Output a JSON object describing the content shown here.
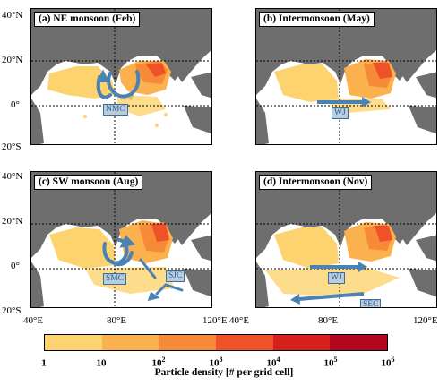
{
  "panels": [
    {
      "title": "(a) NE monsoon (Feb)",
      "currents": [
        {
          "label": "NMC"
        }
      ]
    },
    {
      "title": "(b) Intermonsoon (May)",
      "currents": [
        {
          "label": "WJ"
        }
      ]
    },
    {
      "title": "(c) SW monsoon (Aug)",
      "currents": [
        {
          "label": "SMC"
        },
        {
          "label": "SJC"
        }
      ]
    },
    {
      "title": "(d) Intermonsoon (Nov)",
      "currents": [
        {
          "label": "WJ"
        },
        {
          "label": "SEC"
        }
      ]
    }
  ],
  "axes": {
    "lat_ticks": [
      "40°N",
      "20°N",
      "0°",
      "20°S"
    ],
    "lon_ticks": [
      "40°E",
      "80°E",
      "120°E"
    ]
  },
  "colorbar": {
    "title": "Particle density [# per grid cell]",
    "ticks": [
      {
        "base": "1",
        "exp": ""
      },
      {
        "base": "10",
        "exp": ""
      },
      {
        "base": "10",
        "exp": "2"
      },
      {
        "base": "10",
        "exp": "3"
      },
      {
        "base": "10",
        "exp": "4"
      },
      {
        "base": "10",
        "exp": "5"
      },
      {
        "base": "10",
        "exp": "6"
      }
    ],
    "colors": [
      "#fdd36f",
      "#fbb14e",
      "#f78a38",
      "#ef5128",
      "#d7201c",
      "#b30621"
    ]
  },
  "colors": {
    "land": "#6e6e6e",
    "arrow": "#4a82b6",
    "ocean": "#ffffff"
  }
}
